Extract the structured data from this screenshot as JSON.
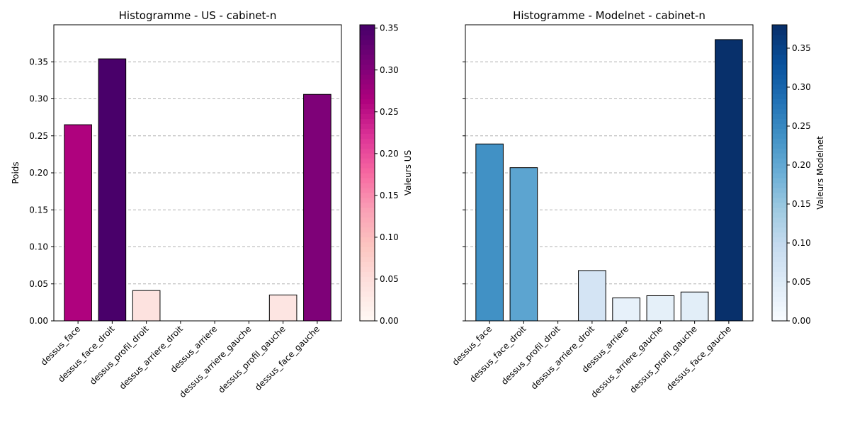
{
  "chart_data": [
    {
      "type": "bar",
      "title": "Histogramme - US - cabinet-n",
      "xlabel": "",
      "ylabel": "Poids",
      "categories": [
        "dessus_face",
        "dessus_face_droit",
        "dessus_profil_droit",
        "dessus_arriere_droit",
        "dessus_arriere",
        "dessus_arriere_gauche",
        "dessus_profil_gauche",
        "dessus_face_gauche"
      ],
      "values": [
        0.265,
        0.354,
        0.041,
        0.0,
        0.0,
        0.0,
        0.035,
        0.306
      ],
      "ylim": [
        0,
        0.4
      ],
      "yticks": [
        "0.00",
        "0.05",
        "0.10",
        "0.15",
        "0.20",
        "0.25",
        "0.30",
        "0.35"
      ],
      "grid": "y",
      "colorbar": {
        "label": "Valeurs US",
        "range": [
          0,
          0.354
        ],
        "ticks": [
          "0.00",
          "0.05",
          "0.10",
          "0.15",
          "0.20",
          "0.25",
          "0.30",
          "0.35"
        ],
        "colormap": [
          "#fff7f3",
          "#fde0dd",
          "#fcc5c0",
          "#fa9fb5",
          "#f768a1",
          "#dd3497",
          "#ae017e",
          "#7a0177",
          "#49006a"
        ]
      }
    },
    {
      "type": "bar",
      "title": "Histogramme - Modelnet - cabinet-n",
      "xlabel": "",
      "ylabel": "",
      "categories": [
        "dessus_face",
        "dessus_face_droit",
        "dessus_profil_droit",
        "dessus_arriere_droit",
        "dessus_arriere",
        "dessus_arriere_gauche",
        "dessus_profil_gauche",
        "dessus_face_gauche"
      ],
      "values": [
        0.239,
        0.207,
        0.0,
        0.068,
        0.031,
        0.034,
        0.039,
        0.38
      ],
      "ylim": [
        0,
        0.4
      ],
      "grid": "y",
      "colorbar": {
        "label": "Valeurs Modelnet",
        "range": [
          0,
          0.38
        ],
        "ticks": [
          "0.00",
          "0.05",
          "0.10",
          "0.15",
          "0.20",
          "0.25",
          "0.30",
          "0.35"
        ],
        "colormap": [
          "#f7fbff",
          "#deebf7",
          "#c6dbef",
          "#9ecae1",
          "#6baed6",
          "#4292c6",
          "#2171b5",
          "#08519c",
          "#08306b"
        ]
      }
    }
  ]
}
